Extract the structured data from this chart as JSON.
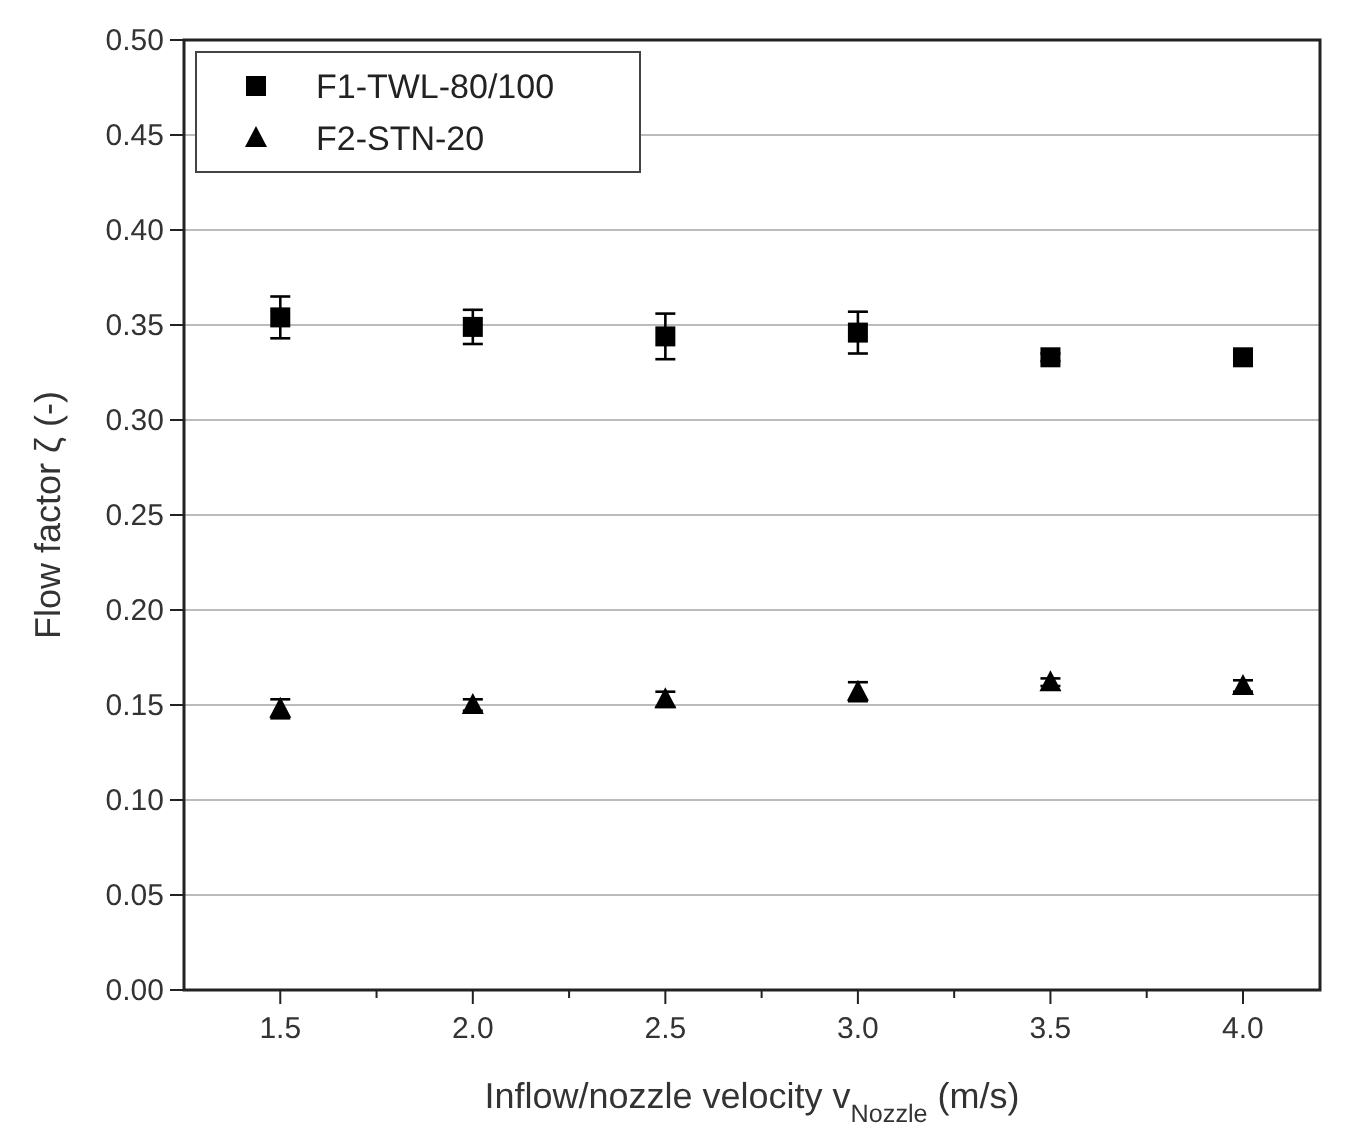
{
  "chart_data": {
    "type": "scatter",
    "xlabel": "Inflow/nozzle velocity v$_{Nozzle}$ (m/s)",
    "ylabel": "Flow factor ζ (-)",
    "x": [
      1.5,
      2.0,
      2.5,
      3.0,
      3.5,
      4.0
    ],
    "series": [
      {
        "name": "F1-TWL-80/100",
        "color": "#000000",
        "marker": "square",
        "values": [
          0.354,
          0.349,
          0.344,
          0.346,
          0.333,
          0.333
        ],
        "errors": [
          0.011,
          0.009,
          0.012,
          0.011,
          0.002,
          0.003
        ]
      },
      {
        "name": "F2-STN-20",
        "color": "#000000",
        "marker": "triangle",
        "values": [
          0.148,
          0.15,
          0.153,
          0.157,
          0.162,
          0.16
        ],
        "errors": [
          0.005,
          0.003,
          0.004,
          0.005,
          0.002,
          0.003
        ]
      }
    ],
    "xlim": [
      1.25,
      4.2
    ],
    "xticks": [
      {
        "value": 1.5,
        "label": "1.5"
      },
      {
        "value": 1.75,
        "label": null
      },
      {
        "value": 2.0,
        "label": "2.0"
      },
      {
        "value": 2.25,
        "label": null
      },
      {
        "value": 2.5,
        "label": "2.5"
      },
      {
        "value": 2.75,
        "label": null
      },
      {
        "value": 3.0,
        "label": "3.0"
      },
      {
        "value": 3.25,
        "label": null
      },
      {
        "value": 3.5,
        "label": "3.5"
      },
      {
        "value": 3.75,
        "label": null
      },
      {
        "value": 4.0,
        "label": "4.0"
      }
    ],
    "ylim": [
      0,
      0.5
    ],
    "yticks": [
      {
        "value": 0,
        "label": "0.00"
      },
      {
        "value": 0.05,
        "label": "0.05"
      },
      {
        "value": 0.1,
        "label": "0.10"
      },
      {
        "value": 0.15,
        "label": "0.15"
      },
      {
        "value": 0.2,
        "label": "0.20"
      },
      {
        "value": 0.25,
        "label": "0.25"
      },
      {
        "value": 0.3,
        "label": "0.30"
      },
      {
        "value": 0.35,
        "label": "0.35"
      },
      {
        "value": 0.4,
        "label": "0.40"
      },
      {
        "value": 0.45,
        "label": "0.45"
      },
      {
        "value": 0.5,
        "label": "0.50"
      }
    ],
    "grid": "y",
    "legend": "top left"
  }
}
